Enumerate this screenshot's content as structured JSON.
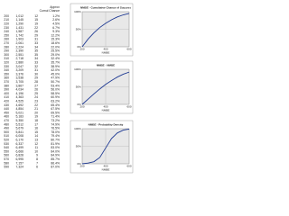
{
  "header": [
    "Approx",
    "Cumul Chance"
  ],
  "table": {
    "rows": [
      [
        200,
        "1,012",
        12,
        "1.2%"
      ],
      [
        210,
        "1,145",
        15,
        "2.6%"
      ],
      [
        220,
        "1,290",
        19,
        "4.5%"
      ],
      [
        230,
        "1,431",
        22,
        "6.7%"
      ],
      [
        240,
        "1,587",
        26,
        "9.3%"
      ],
      [
        250,
        "1,742",
        29,
        "12.2%"
      ],
      [
        260,
        "1,903",
        31,
        "15.3%"
      ],
      [
        270,
        "2,061",
        33,
        "18.6%"
      ],
      [
        280,
        "2,224",
        34,
        "22.0%"
      ],
      [
        290,
        "2,390",
        35,
        "25.5%"
      ],
      [
        300,
        "2,551",
        35,
        "29.0%"
      ],
      [
        310,
        "2,718",
        34,
        "32.4%"
      ],
      [
        320,
        "2,880",
        33,
        "35.7%"
      ],
      [
        330,
        "3,047",
        32,
        "38.9%"
      ],
      [
        340,
        "3,209",
        31,
        "42.0%"
      ],
      [
        350,
        "3,376",
        30,
        "45.0%"
      ],
      [
        360,
        "3,538",
        29,
        "47.9%"
      ],
      [
        370,
        "3,705",
        28,
        "50.7%"
      ],
      [
        380,
        "3,867",
        27,
        "53.4%"
      ],
      [
        390,
        "4,034",
        26,
        "56.0%"
      ],
      [
        400,
        "4,196",
        25,
        "58.5%"
      ],
      [
        410,
        "4,363",
        24,
        "60.9%"
      ],
      [
        420,
        "4,525",
        23,
        "63.2%"
      ],
      [
        430,
        "4,692",
        22,
        "65.4%"
      ],
      [
        440,
        "4,854",
        21,
        "67.5%"
      ],
      [
        450,
        "5,021",
        20,
        "69.5%"
      ],
      [
        460,
        "5,183",
        19,
        "71.4%"
      ],
      [
        470,
        "5,350",
        18,
        "73.2%"
      ],
      [
        480,
        "5,512",
        17,
        "74.9%"
      ],
      [
        490,
        "5,679",
        16,
        "76.5%"
      ],
      [
        500,
        "5,841",
        15,
        "78.0%"
      ],
      [
        510,
        "6,008",
        14,
        "79.4%"
      ],
      [
        520,
        "6,170",
        13,
        "80.7%"
      ],
      [
        530,
        "6,337",
        12,
        "81.9%"
      ],
      [
        540,
        "6,499",
        11,
        "83.0%"
      ],
      [
        550,
        "6,666",
        10,
        "84.0%"
      ],
      [
        560,
        "6,828",
        9,
        "84.9%"
      ],
      [
        570,
        "6,995",
        8,
        "85.7%"
      ],
      [
        580,
        "7,157",
        7,
        "86.4%"
      ],
      [
        590,
        "7,324",
        6,
        "87.0%"
      ]
    ]
  },
  "chart_data": [
    {
      "type": "line",
      "title": "NMBE - Cumulative Chance of Success",
      "xlabel": "NMBE",
      "x": [
        200,
        250,
        300,
        350,
        400,
        450,
        500,
        550,
        600
      ],
      "series": [
        {
          "name": "Cumulative",
          "color": "#1f3a93",
          "values": [
            0,
            22,
            40,
            55,
            67,
            77,
            85,
            91,
            95
          ]
        }
      ],
      "xlim": [
        200,
        600
      ],
      "ylim": [
        0,
        100
      ],
      "xticks": [
        200,
        400,
        600
      ],
      "yticks": [
        {
          "value": 0,
          "label": "0%"
        },
        {
          "value": 50,
          "label": "50%"
        },
        {
          "value": 100,
          "label": "100%"
        }
      ],
      "grid": true
    },
    {
      "type": "line",
      "title": "NMBE - NMBE",
      "xlabel": "NMBE",
      "x": [
        200,
        250,
        300,
        350,
        400,
        450,
        500,
        550,
        600
      ],
      "series": [
        {
          "name": "NMBE",
          "color": "#1f3a93",
          "values": [
            0,
            15,
            30,
            44,
            57,
            68,
            78,
            86,
            92
          ]
        }
      ],
      "xlim": [
        200,
        600
      ],
      "ylim": [
        0,
        100
      ],
      "xticks": [
        200,
        400,
        600
      ],
      "yticks": [
        {
          "value": 0,
          "label": "0%"
        },
        {
          "value": 50,
          "label": "50%"
        },
        {
          "value": 100,
          "label": "100%"
        }
      ],
      "grid": true
    },
    {
      "type": "line",
      "title": "NMBE - Probability Density",
      "xlabel": "NMBE",
      "x": [
        200,
        250,
        300,
        350,
        400,
        450,
        500,
        550,
        600
      ],
      "series": [
        {
          "name": "Probability",
          "color": "#1f3a93",
          "values": [
            0,
            2,
            6,
            18,
            45,
            72,
            88,
            96,
            99
          ]
        }
      ],
      "xlim": [
        200,
        600
      ],
      "ylim": [
        0,
        100
      ],
      "xticks": [
        200,
        400,
        600
      ],
      "yticks": [
        {
          "value": 0,
          "label": "0%"
        },
        {
          "value": 50,
          "label": "50%"
        },
        {
          "value": 100,
          "label": "100%"
        }
      ],
      "grid": true
    }
  ]
}
